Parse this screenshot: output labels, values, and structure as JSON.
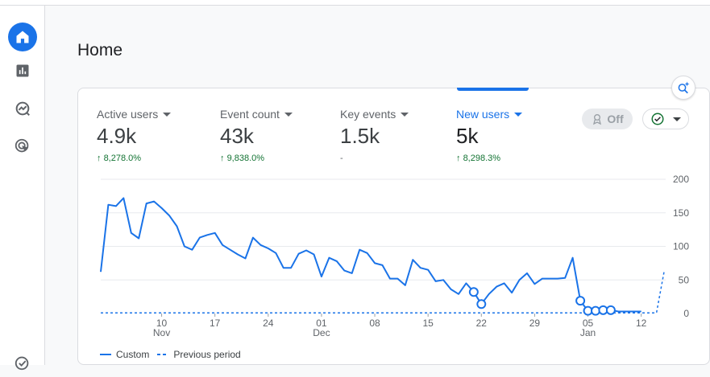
{
  "page": {
    "title": "Home"
  },
  "sidebar": {
    "items": [
      {
        "icon": "home-icon",
        "active": true
      },
      {
        "icon": "reports-icon",
        "active": false
      },
      {
        "icon": "explore-icon",
        "active": false
      },
      {
        "icon": "advertising-icon",
        "active": false
      },
      {
        "icon": "configure-icon",
        "active": false
      }
    ]
  },
  "metrics": [
    {
      "label": "Active users",
      "value": "4.9k",
      "change": "8,278.0%",
      "direction": "up"
    },
    {
      "label": "Event count",
      "value": "43k",
      "change": "9,838.0%",
      "direction": "up"
    },
    {
      "label": "Key events",
      "value": "1.5k",
      "change": "-",
      "direction": "none"
    },
    {
      "label": "New users",
      "value": "5k",
      "change": "8,298.3%",
      "direction": "up",
      "selected": true
    }
  ],
  "controls": {
    "off_label": "Off"
  },
  "colors": {
    "accent": "#1a73e8",
    "positive": "#137333"
  },
  "chart_data": {
    "type": "line",
    "x_tick_labels": [
      {
        "day": "10",
        "month": "Nov"
      },
      {
        "day": "17",
        "month": ""
      },
      {
        "day": "24",
        "month": ""
      },
      {
        "day": "01",
        "month": "Dec"
      },
      {
        "day": "08",
        "month": ""
      },
      {
        "day": "15",
        "month": ""
      },
      {
        "day": "22",
        "month": ""
      },
      {
        "day": "29",
        "month": ""
      },
      {
        "day": "05",
        "month": "Jan"
      },
      {
        "day": "12",
        "month": ""
      }
    ],
    "y_ticks": [
      "0",
      "50",
      "100",
      "150",
      "200"
    ],
    "ylim": [
      0,
      200
    ],
    "grid": true,
    "legend_position": "bottom-left",
    "series": [
      {
        "name": "Custom",
        "style": "solid",
        "values": [
          62,
          162,
          160,
          172,
          120,
          112,
          164,
          167,
          157,
          146,
          130,
          100,
          95,
          113,
          117,
          120,
          102,
          95,
          88,
          82,
          113,
          102,
          97,
          90,
          68,
          68,
          89,
          94,
          88,
          55,
          83,
          78,
          64,
          60,
          95,
          90,
          75,
          72,
          52,
          52,
          42,
          80,
          68,
          65,
          48,
          50,
          36,
          29,
          45,
          32,
          14,
          29,
          40,
          45,
          31,
          50,
          60,
          44,
          52,
          52,
          52,
          53,
          83,
          19,
          4,
          4,
          5,
          5,
          3,
          3,
          3,
          3
        ]
      },
      {
        "name": "Previous period",
        "style": "dashed",
        "values": [
          1,
          1,
          1,
          1,
          1,
          1,
          1,
          1,
          1,
          1,
          1,
          1,
          1,
          1,
          1,
          1,
          1,
          1,
          1,
          1,
          1,
          1,
          1,
          1,
          1,
          1,
          1,
          1,
          1,
          1,
          1,
          1,
          1,
          1,
          1,
          1,
          1,
          1,
          1,
          1,
          1,
          1,
          1,
          1,
          1,
          1,
          1,
          1,
          1,
          1,
          1,
          1,
          1,
          1,
          1,
          1,
          1,
          1,
          1,
          1,
          1,
          1,
          1,
          1,
          1,
          1,
          1,
          1,
          1,
          1,
          1,
          1,
          1,
          1,
          62
        ]
      }
    ],
    "anomaly_indices": [
      49,
      50,
      63,
      64,
      65,
      66,
      67
    ]
  }
}
